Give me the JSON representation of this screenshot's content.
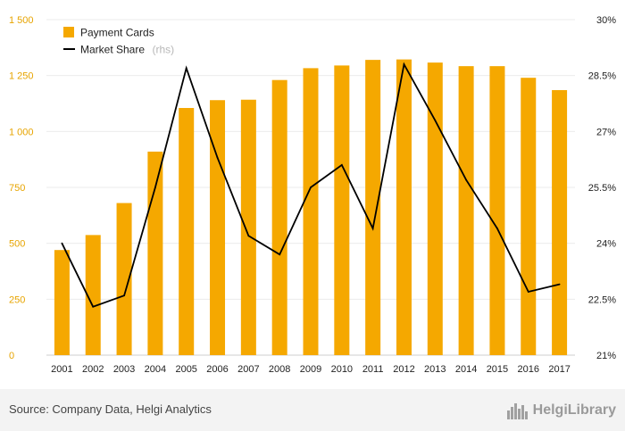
{
  "chart_data": {
    "type": "bar",
    "categories": [
      "2001",
      "2002",
      "2003",
      "2004",
      "2005",
      "2006",
      "2007",
      "2008",
      "2009",
      "2010",
      "2011",
      "2012",
      "2013",
      "2014",
      "2015",
      "2016",
      "2017"
    ],
    "series": [
      {
        "name": "Payment Cards",
        "type": "bar",
        "axis": "left",
        "color": "#f5a800",
        "values": [
          470,
          537,
          680,
          910,
          1105,
          1140,
          1142,
          1230,
          1283,
          1295,
          1320,
          1322,
          1308,
          1292,
          1292,
          1240,
          1185
        ]
      },
      {
        "name": "Market Share",
        "name_note": "(rhs)",
        "type": "line",
        "axis": "right",
        "color": "#000000",
        "values": [
          24.0,
          22.3,
          22.6,
          25.5,
          28.7,
          26.3,
          24.2,
          23.7,
          25.5,
          26.1,
          24.4,
          28.8,
          27.3,
          25.7,
          24.4,
          22.7,
          22.9
        ]
      }
    ],
    "ylim_left": [
      0,
      1500
    ],
    "yticks_left": [
      "0",
      "250",
      "500",
      "750",
      "1 000",
      "1 250",
      "1 500"
    ],
    "ylim_right": [
      21,
      30
    ],
    "yticks_right": [
      "21%",
      "22.5%",
      "24%",
      "25.5%",
      "27%",
      "28.5%",
      "30%"
    ],
    "grid": true,
    "legend_position": "top-left"
  },
  "footer": {
    "source": "Source: Company Data, Helgi Analytics",
    "brand": "HelgiLibrary",
    "brand_icon": "city-skyline-icon"
  }
}
